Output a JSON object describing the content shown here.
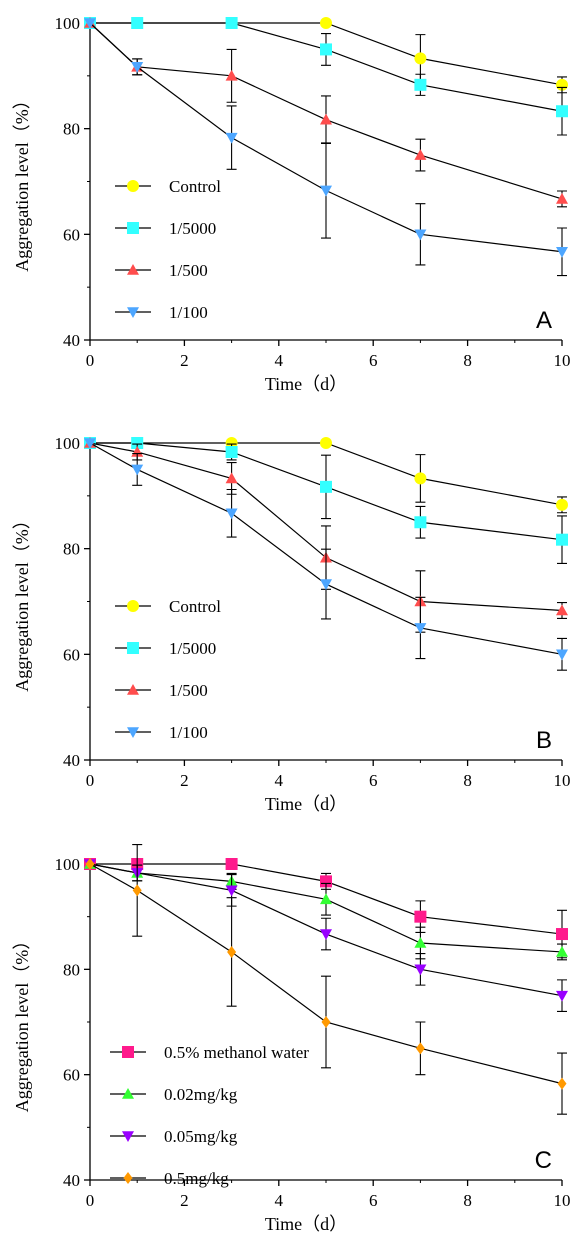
{
  "chart_data": [
    {
      "type": "line",
      "panel_label": "A",
      "xlabel": "Time（d）",
      "ylabel": "Aggregation level（%）",
      "xlim": [
        0,
        10
      ],
      "ylim": [
        40,
        100
      ],
      "x_ticks": [
        "0",
        "2",
        "4",
        "6",
        "8",
        "10"
      ],
      "y_ticks": [
        "40",
        "60",
        "80",
        "100"
      ],
      "grid": false,
      "legend_position": "lower-left",
      "x": [
        0,
        1,
        3,
        5,
        7,
        10
      ],
      "series": [
        {
          "name": "Control",
          "color": "#ffff00",
          "marker": "circle",
          "values": [
            100,
            100,
            100,
            100,
            93.3,
            88.3
          ],
          "errors": [
            0,
            0,
            0,
            0,
            4.5,
            1.5
          ]
        },
        {
          "name": "1/5000",
          "color": "#33ffff",
          "marker": "square",
          "values": [
            100,
            100,
            100,
            95,
            88.3,
            83.3
          ],
          "errors": [
            0,
            0,
            0,
            3,
            2,
            4.5
          ]
        },
        {
          "name": "1/500",
          "color": "#ff4d4d",
          "marker": "triangle-up",
          "values": [
            100,
            91.7,
            90,
            81.7,
            75,
            66.7
          ],
          "errors": [
            0,
            1.5,
            5,
            4.5,
            3,
            1.5
          ]
        },
        {
          "name": "1/100",
          "color": "#4da6ff",
          "marker": "triangle-down",
          "values": [
            100,
            91.7,
            78.3,
            68.3,
            60,
            56.7
          ],
          "errors": [
            0,
            1.5,
            6,
            9,
            5.8,
            4.5
          ]
        }
      ]
    },
    {
      "type": "line",
      "panel_label": "B",
      "xlabel": "Time（d）",
      "ylabel": "Aggregation level（%）",
      "xlim": [
        0,
        10
      ],
      "ylim": [
        40,
        100
      ],
      "x_ticks": [
        "0",
        "2",
        "4",
        "6",
        "8",
        "10"
      ],
      "y_ticks": [
        "40",
        "60",
        "80",
        "100"
      ],
      "grid": false,
      "legend_position": "lower-left",
      "x": [
        0,
        1,
        3,
        5,
        7,
        10
      ],
      "series": [
        {
          "name": "Control",
          "color": "#ffff00",
          "marker": "circle",
          "values": [
            100,
            100,
            100,
            100,
            93.3,
            88.3
          ],
          "errors": [
            0,
            0,
            0,
            0,
            4.5,
            1.5
          ]
        },
        {
          "name": "1/5000",
          "color": "#33ffff",
          "marker": "square",
          "values": [
            100,
            100,
            98.3,
            91.7,
            85,
            81.7
          ],
          "errors": [
            0,
            0,
            1.5,
            6,
            3,
            4.5
          ]
        },
        {
          "name": "1/500",
          "color": "#ff4d4d",
          "marker": "triangle-up",
          "values": [
            100,
            98.3,
            93.3,
            78.3,
            70,
            68.3
          ],
          "errors": [
            0,
            1.5,
            3,
            6,
            5.8,
            1.5
          ]
        },
        {
          "name": "1/100",
          "color": "#4da6ff",
          "marker": "triangle-down",
          "values": [
            100,
            95,
            86.7,
            73.3,
            65,
            60
          ],
          "errors": [
            0,
            3,
            4.5,
            6.6,
            5.8,
            3
          ]
        }
      ]
    },
    {
      "type": "line",
      "panel_label": "C",
      "xlabel": "Time（d）",
      "ylabel": "Aggregation level（%）",
      "xlim": [
        0,
        10
      ],
      "ylim": [
        40,
        100
      ],
      "x_ticks": [
        "0",
        "2",
        "4",
        "6",
        "8",
        "10"
      ],
      "y_ticks": [
        "40",
        "60",
        "80",
        "100"
      ],
      "grid": false,
      "legend_position": "lower-left",
      "x": [
        0,
        1,
        3,
        5,
        7,
        10
      ],
      "series": [
        {
          "name": "0.5% methanol water",
          "color": "#ff1a8c",
          "marker": "square",
          "values": [
            100,
            100,
            100,
            96.7,
            90,
            86.7
          ],
          "errors": [
            0,
            0,
            0,
            1.5,
            3,
            4.5
          ]
        },
        {
          "name": "0.02mg/kg",
          "color": "#33ff33",
          "marker": "triangle-up",
          "values": [
            100,
            98.3,
            96.7,
            93.3,
            85,
            83.3
          ],
          "errors": [
            0,
            1.5,
            1.5,
            3,
            3,
            1.5
          ]
        },
        {
          "name": "0.05mg/kg",
          "color": "#9900ff",
          "marker": "triangle-down",
          "values": [
            100,
            98.3,
            95,
            86.7,
            80,
            75
          ],
          "errors": [
            0,
            1.5,
            3,
            3,
            3,
            3
          ]
        },
        {
          "name": "0.5mg/kg",
          "color": "#ff9900",
          "marker": "diamond",
          "values": [
            100,
            95,
            83.3,
            70,
            65,
            58.3
          ],
          "errors": [
            0,
            8.7,
            10.3,
            8.7,
            5,
            5.8
          ]
        }
      ]
    }
  ]
}
